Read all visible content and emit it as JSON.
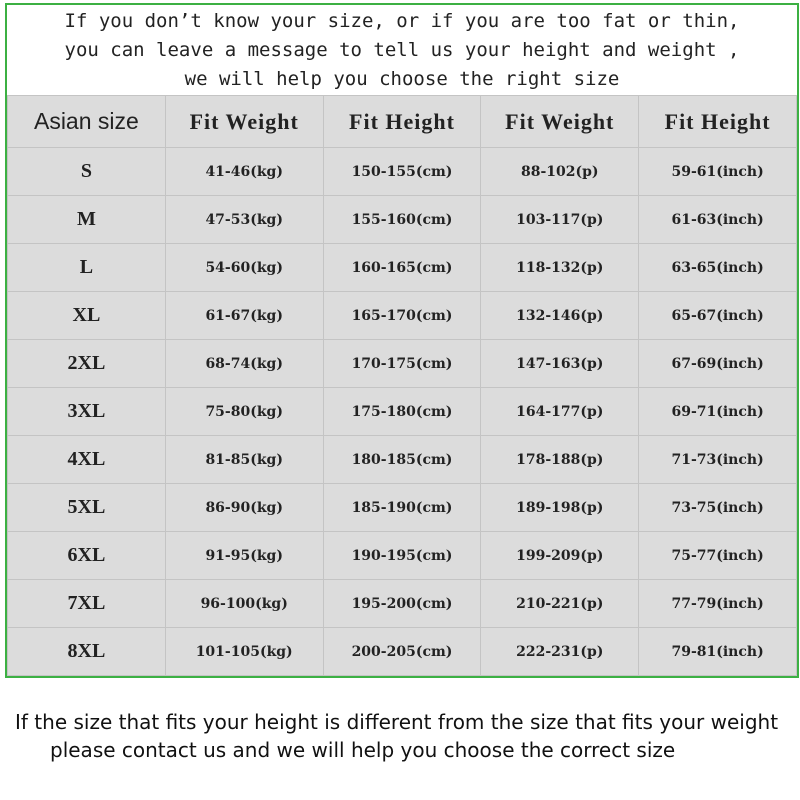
{
  "intro": {
    "lines": [
      "If you don’t know your size, or if you are too fat or thin,",
      "you can leave a message to tell us your height and weight ,",
      "we will help you choose the right size"
    ]
  },
  "table": {
    "headers": [
      "Asian size",
      "Fit Weight",
      "Fit Height",
      "Fit Weight",
      "Fit Height"
    ],
    "rows": [
      [
        "S",
        "41-46(kg)",
        "150-155(cm)",
        "88-102(p)",
        "59-61(inch)"
      ],
      [
        "M",
        "47-53(kg)",
        "155-160(cm)",
        "103-117(p)",
        "61-63(inch)"
      ],
      [
        "L",
        "54-60(kg)",
        "160-165(cm)",
        "118-132(p)",
        "63-65(inch)"
      ],
      [
        "XL",
        "61-67(kg)",
        "165-170(cm)",
        "132-146(p)",
        "65-67(inch)"
      ],
      [
        "2XL",
        "68-74(kg)",
        "170-175(cm)",
        "147-163(p)",
        "67-69(inch)"
      ],
      [
        "3XL",
        "75-80(kg)",
        "175-180(cm)",
        "164-177(p)",
        "69-71(inch)"
      ],
      [
        "4XL",
        "81-85(kg)",
        "180-185(cm)",
        "178-188(p)",
        "71-73(inch)"
      ],
      [
        "5XL",
        "86-90(kg)",
        "185-190(cm)",
        "189-198(p)",
        "73-75(inch)"
      ],
      [
        "6XL",
        "91-95(kg)",
        "190-195(cm)",
        "199-209(p)",
        "75-77(inch)"
      ],
      [
        "7XL",
        "96-100(kg)",
        "195-200(cm)",
        "210-221(p)",
        "77-79(inch)"
      ],
      [
        "8XL",
        "101-105(kg)",
        "200-205(cm)",
        "222-231(p)",
        "79-81(inch)"
      ]
    ]
  },
  "note": {
    "lines": [
      "If the size that fits your height is different from the size that fits your weight",
      "please contact us and we will help you choose the correct size"
    ]
  },
  "colors": {
    "border": "#3cb043",
    "table_bg": "#dcdcdc"
  }
}
